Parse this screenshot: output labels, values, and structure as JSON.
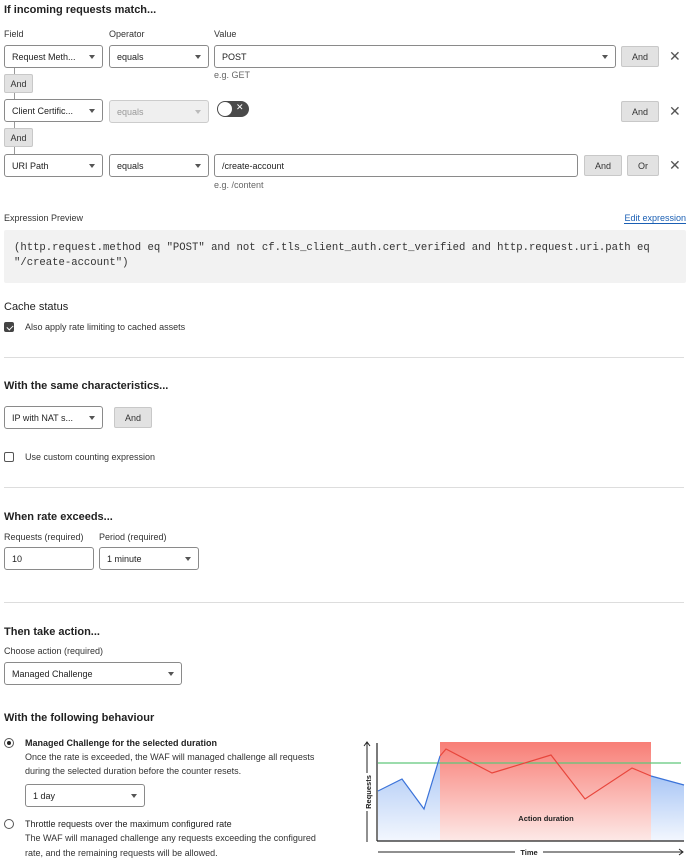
{
  "match": {
    "heading": "If incoming requests match...",
    "col_field": "Field",
    "col_operator": "Operator",
    "col_value": "Value",
    "rows": [
      {
        "field": "Request Meth...",
        "operator": "equals",
        "value": "POST",
        "hint": "e.g. GET",
        "and": "And"
      },
      {
        "field": "Client Certific...",
        "operator": "equals",
        "toggle": false,
        "and": "And"
      },
      {
        "field": "URI Path",
        "operator": "equals",
        "value": "/create-account",
        "hint": "e.g. /content",
        "and": "And",
        "or": "Or"
      }
    ],
    "connector": "And"
  },
  "expression": {
    "label": "Expression Preview",
    "edit_link": "Edit expression",
    "line1": "(http.request.method eq \"POST\" and not cf.tls_client_auth.cert_verified and http.request.uri.path eq",
    "line2": "\"/create-account\")"
  },
  "cache": {
    "heading": "Cache status",
    "checkbox_label": "Also apply rate limiting to cached assets",
    "checked": true
  },
  "characteristics": {
    "heading": "With the same characteristics...",
    "select": "IP with NAT s...",
    "and": "And",
    "custom_label": "Use custom counting expression",
    "custom_checked": false
  },
  "rate": {
    "heading": "When rate exceeds...",
    "requests_label": "Requests (required)",
    "requests_value": "10",
    "period_label": "Period (required)",
    "period_value": "1 minute"
  },
  "action": {
    "heading": "Then take action...",
    "choose_label": "Choose action (required)",
    "selected": "Managed Challenge"
  },
  "behaviour": {
    "heading": "With the following behaviour",
    "option1_title": "Managed Challenge for the selected duration",
    "option1_desc1": "Once the rate is exceeded, the WAF will managed challenge all requests",
    "option1_desc2": "during the selected duration before the counter resets.",
    "duration": "1 day",
    "option2_title": "Throttle requests over the maximum configured rate",
    "option2_desc1": "The WAF will managed challenge any exceeding the configured",
    "option2_desc1_full": "The WAF will managed challenge any requests exceeding the configured",
    "option2_desc2": "rate, and the remaining requests will be allowed.",
    "selected_option": 1
  },
  "illustration": {
    "y_label": "Requests",
    "x_label": "Time",
    "region_label": "Action duration",
    "colors": {
      "threshold": "#5fc77a",
      "under": "#3b73d9",
      "over": "#e8463c",
      "region": "#f87e76"
    }
  }
}
